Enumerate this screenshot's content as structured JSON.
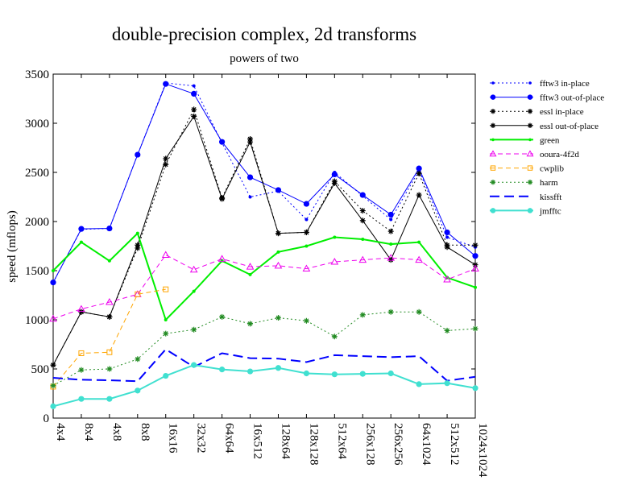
{
  "chart_data": {
    "type": "line",
    "title": "double-precision complex, 2d transforms",
    "subtitle": "powers of two",
    "ylabel": "speed (mflops)",
    "xlabel": "",
    "ylim": [
      0,
      3500
    ],
    "yticks": [
      0,
      500,
      1000,
      1500,
      2000,
      2500,
      3000,
      3500
    ],
    "grid": false,
    "legend_position": "right",
    "categories": [
      "4x4",
      "8x4",
      "4x8",
      "8x8",
      "16x16",
      "32x32",
      "64x64",
      "16x512",
      "128x64",
      "128x128",
      "512x64",
      "256x128",
      "256x256",
      "64x1024",
      "512x512",
      "1024x1024"
    ],
    "series": [
      {
        "name": "fftw3 in-place",
        "color": "#0000ff",
        "dash": "2,3",
        "marker": "dot",
        "width": 1,
        "values": [
          1380,
          1920,
          1930,
          2680,
          3410,
          3380,
          2800,
          2250,
          2310,
          2020,
          2500,
          2260,
          2020,
          2520,
          1840,
          1740
        ]
      },
      {
        "name": "fftw3 out-of-place",
        "color": "#0000ff",
        "dash": "",
        "marker": "circle",
        "width": 1,
        "values": [
          1380,
          1925,
          1930,
          2680,
          3400,
          3300,
          2810,
          2450,
          2320,
          2180,
          2480,
          2270,
          2070,
          2540,
          1890,
          1650
        ]
      },
      {
        "name": "essl in-place",
        "color": "#000000",
        "dash": "2,3",
        "marker": "star",
        "width": 1,
        "values": [
          540,
          1080,
          1030,
          1730,
          2580,
          3140,
          2240,
          2840,
          1880,
          1890,
          2410,
          2110,
          1900,
          2490,
          1760,
          1760
        ]
      },
      {
        "name": "essl out-of-place",
        "color": "#000000",
        "dash": "",
        "marker": "star",
        "width": 1,
        "values": [
          540,
          1080,
          1030,
          1760,
          2640,
          3070,
          2230,
          2810,
          1880,
          1890,
          2390,
          2010,
          1610,
          2270,
          1740,
          1560
        ]
      },
      {
        "name": "green",
        "color": "#00ee00",
        "dash": "",
        "marker": "dot",
        "width": 2,
        "values": [
          1500,
          1790,
          1600,
          1880,
          1000,
          1290,
          1600,
          1460,
          1690,
          1750,
          1840,
          1820,
          1770,
          1790,
          1430,
          1330
        ]
      },
      {
        "name": "ooura-4f2d",
        "color": "#ee00ee",
        "dash": "6,4",
        "marker": "triangle",
        "width": 1,
        "values": [
          1010,
          1110,
          1180,
          1260,
          1660,
          1510,
          1620,
          1540,
          1550,
          1520,
          1590,
          1610,
          1630,
          1610,
          1410,
          1520
        ]
      },
      {
        "name": "cwplib",
        "color": "#ffa500",
        "dash": "6,4",
        "marker": "square",
        "width": 1,
        "values": [
          320,
          660,
          670,
          1260,
          1310,
          null,
          null,
          null,
          null,
          null,
          null,
          null,
          null,
          null,
          null,
          null
        ]
      },
      {
        "name": "harm",
        "color": "#228b22",
        "dash": "2,3",
        "marker": "star",
        "width": 1,
        "values": [
          330,
          490,
          500,
          600,
          860,
          900,
          1030,
          960,
          1020,
          990,
          830,
          1050,
          1080,
          1080,
          890,
          910
        ]
      },
      {
        "name": "kissfft",
        "color": "#0000ff",
        "dash": "12,6",
        "marker": "none",
        "width": 2,
        "values": [
          410,
          390,
          385,
          375,
          700,
          520,
          660,
          610,
          605,
          570,
          640,
          630,
          620,
          630,
          380,
          420
        ]
      },
      {
        "name": "jmfftc",
        "color": "#40e0d0",
        "dash": "",
        "marker": "circle",
        "width": 2,
        "values": [
          120,
          195,
          195,
          280,
          430,
          540,
          495,
          475,
          510,
          455,
          445,
          450,
          455,
          345,
          355,
          305
        ]
      }
    ]
  }
}
